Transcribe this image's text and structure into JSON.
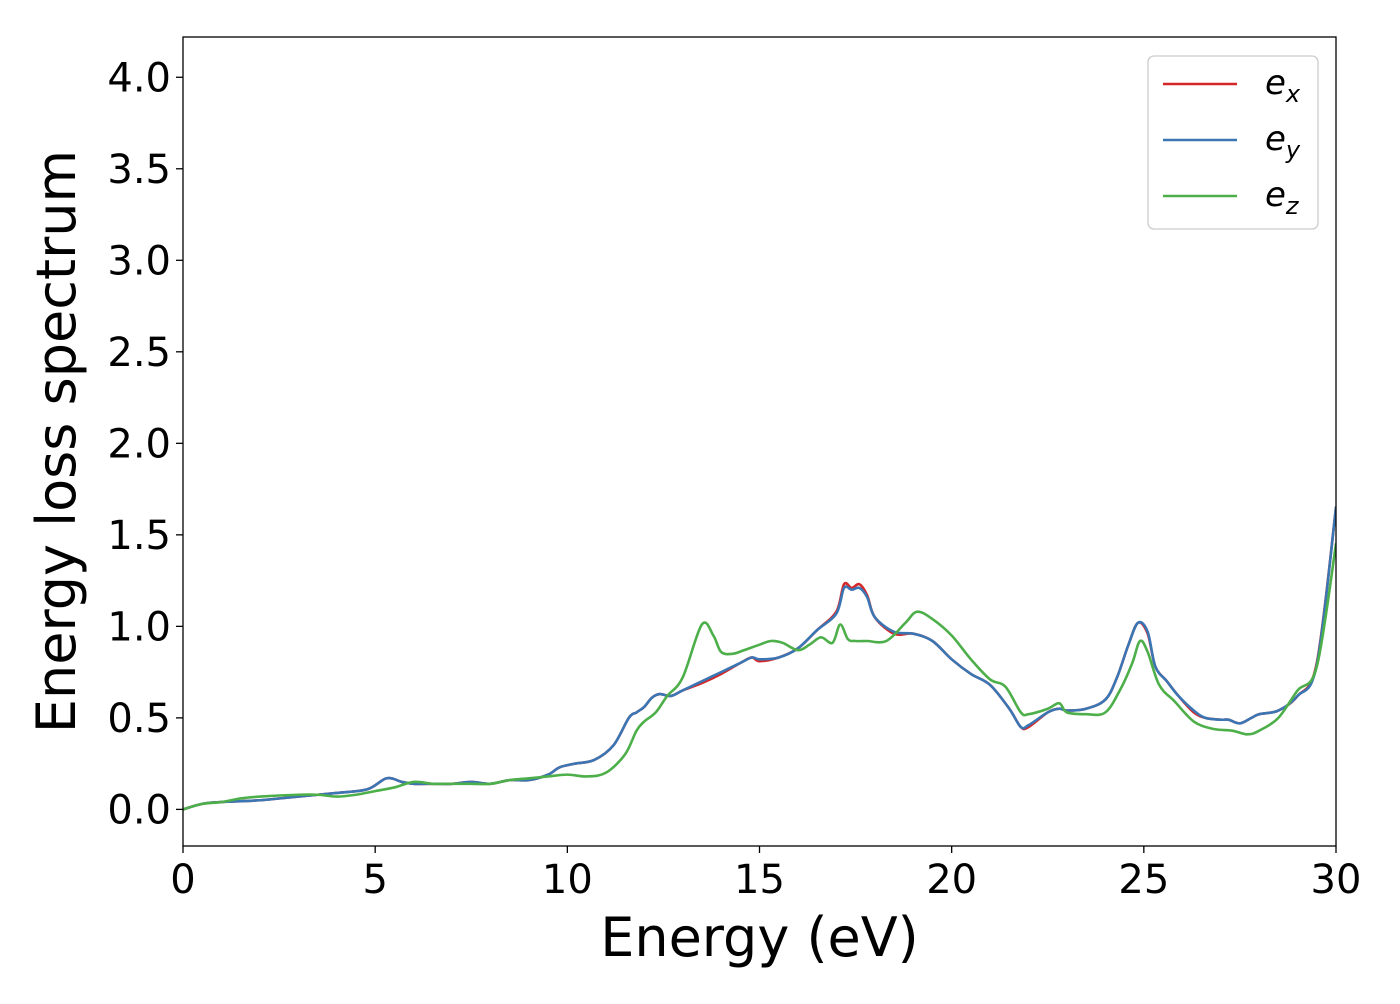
{
  "chart_data": {
    "type": "line",
    "xlabel": "Energy (eV)",
    "ylabel": "Energy loss spectrum",
    "xlim": [
      0,
      30
    ],
    "ylim": [
      -0.2,
      4.22
    ],
    "xticks": [
      0,
      5,
      10,
      15,
      20,
      25,
      30
    ],
    "xtick_labels": [
      "0",
      "5",
      "10",
      "15",
      "20",
      "25",
      "30"
    ],
    "yticks": [
      0.0,
      0.5,
      1.0,
      1.5,
      2.0,
      2.5,
      3.0,
      3.5,
      4.0
    ],
    "ytick_labels": [
      "0.0",
      "0.5",
      "1.0",
      "1.5",
      "2.0",
      "2.5",
      "3.0",
      "3.5",
      "4.0"
    ],
    "grid": false,
    "legend_position": "top-right",
    "series": [
      {
        "name": "e_x",
        "label_main": "e",
        "label_sub": "x",
        "color": "#d62728",
        "x": [
          0,
          0.5,
          1,
          2,
          3,
          4,
          4.8,
          5.3,
          5.7,
          6,
          6.5,
          7,
          7.5,
          8,
          8.5,
          9,
          9.5,
          9.8,
          10.2,
          10.7,
          11.2,
          11.6,
          11.8,
          12,
          12.2,
          12.4,
          12.7,
          13,
          13.5,
          14,
          14.5,
          14.8,
          15,
          15.5,
          16,
          16.5,
          17,
          17.2,
          17.4,
          17.6,
          17.8,
          18,
          18.5,
          19,
          19.5,
          20,
          20.5,
          21,
          21.5,
          21.8,
          22,
          22.5,
          22.8,
          23,
          23.5,
          24,
          24.3,
          24.6,
          24.85,
          25.1,
          25.3,
          25.6,
          25.9,
          26.3,
          26.6,
          27,
          27.2,
          27.5,
          27.8,
          28,
          28.5,
          29,
          29.5,
          30
        ],
        "values": [
          0.0,
          0.03,
          0.04,
          0.05,
          0.07,
          0.09,
          0.11,
          0.17,
          0.15,
          0.14,
          0.14,
          0.14,
          0.15,
          0.14,
          0.16,
          0.16,
          0.19,
          0.23,
          0.25,
          0.27,
          0.35,
          0.5,
          0.53,
          0.56,
          0.61,
          0.63,
          0.62,
          0.65,
          0.69,
          0.74,
          0.8,
          0.83,
          0.81,
          0.83,
          0.88,
          0.98,
          1.08,
          1.23,
          1.21,
          1.23,
          1.17,
          1.05,
          0.96,
          0.96,
          0.92,
          0.82,
          0.74,
          0.68,
          0.55,
          0.45,
          0.45,
          0.53,
          0.55,
          0.54,
          0.55,
          0.6,
          0.72,
          0.9,
          1.02,
          0.96,
          0.78,
          0.7,
          0.62,
          0.53,
          0.5,
          0.49,
          0.49,
          0.47,
          0.5,
          0.52,
          0.54,
          0.62,
          0.8,
          1.65
        ]
      },
      {
        "name": "e_y",
        "label_main": "e",
        "label_sub": "y",
        "color": "#3a76b4",
        "x": [
          0,
          0.5,
          1,
          2,
          3,
          4,
          4.8,
          5.3,
          5.7,
          6,
          6.5,
          7,
          7.5,
          8,
          8.5,
          9,
          9.5,
          9.8,
          10.2,
          10.7,
          11.2,
          11.6,
          11.8,
          12,
          12.2,
          12.4,
          12.7,
          13,
          13.5,
          14,
          14.5,
          14.8,
          15,
          15.5,
          16,
          16.5,
          17,
          17.2,
          17.4,
          17.6,
          17.8,
          18,
          18.5,
          19,
          19.5,
          20,
          20.5,
          21,
          21.5,
          21.8,
          22,
          22.5,
          22.8,
          23,
          23.5,
          24,
          24.3,
          24.6,
          24.85,
          25.1,
          25.3,
          25.6,
          25.9,
          26.3,
          26.6,
          27,
          27.2,
          27.5,
          27.8,
          28,
          28.5,
          29,
          29.5,
          30
        ],
        "values": [
          0.0,
          0.03,
          0.04,
          0.05,
          0.07,
          0.09,
          0.11,
          0.17,
          0.15,
          0.14,
          0.14,
          0.14,
          0.15,
          0.14,
          0.16,
          0.16,
          0.19,
          0.23,
          0.25,
          0.27,
          0.35,
          0.5,
          0.53,
          0.56,
          0.61,
          0.63,
          0.62,
          0.65,
          0.7,
          0.75,
          0.8,
          0.83,
          0.82,
          0.83,
          0.88,
          0.98,
          1.07,
          1.21,
          1.2,
          1.21,
          1.16,
          1.05,
          0.97,
          0.96,
          0.92,
          0.82,
          0.74,
          0.68,
          0.55,
          0.45,
          0.46,
          0.53,
          0.55,
          0.54,
          0.55,
          0.6,
          0.72,
          0.9,
          1.02,
          0.97,
          0.78,
          0.7,
          0.62,
          0.54,
          0.5,
          0.49,
          0.49,
          0.47,
          0.5,
          0.52,
          0.54,
          0.62,
          0.79,
          1.65
        ]
      },
      {
        "name": "e_z",
        "label_main": "e",
        "label_sub": "z",
        "color": "#4daf4a",
        "x": [
          0,
          0.5,
          1,
          1.5,
          2,
          3,
          3.5,
          4,
          4.5,
          5,
          5.5,
          6,
          6.5,
          7,
          7.5,
          8,
          8.5,
          9,
          9.5,
          10,
          10.5,
          11,
          11.5,
          11.8,
          12,
          12.3,
          12.6,
          13,
          13.5,
          13.8,
          14,
          14.3,
          14.6,
          15,
          15.3,
          15.6,
          16,
          16.3,
          16.6,
          16.9,
          17.1,
          17.3,
          17.5,
          17.8,
          18.3,
          18.8,
          19.1,
          19.5,
          20,
          20.5,
          21,
          21.4,
          21.8,
          22,
          22.5,
          22.8,
          23,
          23.5,
          24,
          24.4,
          24.7,
          24.9,
          25.1,
          25.4,
          25.8,
          26.3,
          26.8,
          27.3,
          27.7,
          28,
          28.5,
          29,
          29.5,
          30
        ],
        "values": [
          0.0,
          0.03,
          0.04,
          0.06,
          0.07,
          0.08,
          0.08,
          0.07,
          0.08,
          0.1,
          0.12,
          0.15,
          0.14,
          0.14,
          0.14,
          0.14,
          0.16,
          0.17,
          0.18,
          0.19,
          0.18,
          0.2,
          0.3,
          0.43,
          0.48,
          0.53,
          0.62,
          0.72,
          1.01,
          0.95,
          0.86,
          0.85,
          0.87,
          0.9,
          0.92,
          0.91,
          0.87,
          0.9,
          0.94,
          0.91,
          1.01,
          0.93,
          0.92,
          0.92,
          0.92,
          1.02,
          1.08,
          1.04,
          0.95,
          0.82,
          0.71,
          0.67,
          0.53,
          0.52,
          0.55,
          0.58,
          0.53,
          0.52,
          0.53,
          0.66,
          0.8,
          0.92,
          0.86,
          0.68,
          0.59,
          0.48,
          0.44,
          0.43,
          0.41,
          0.43,
          0.5,
          0.65,
          0.78,
          1.45
        ]
      }
    ]
  }
}
